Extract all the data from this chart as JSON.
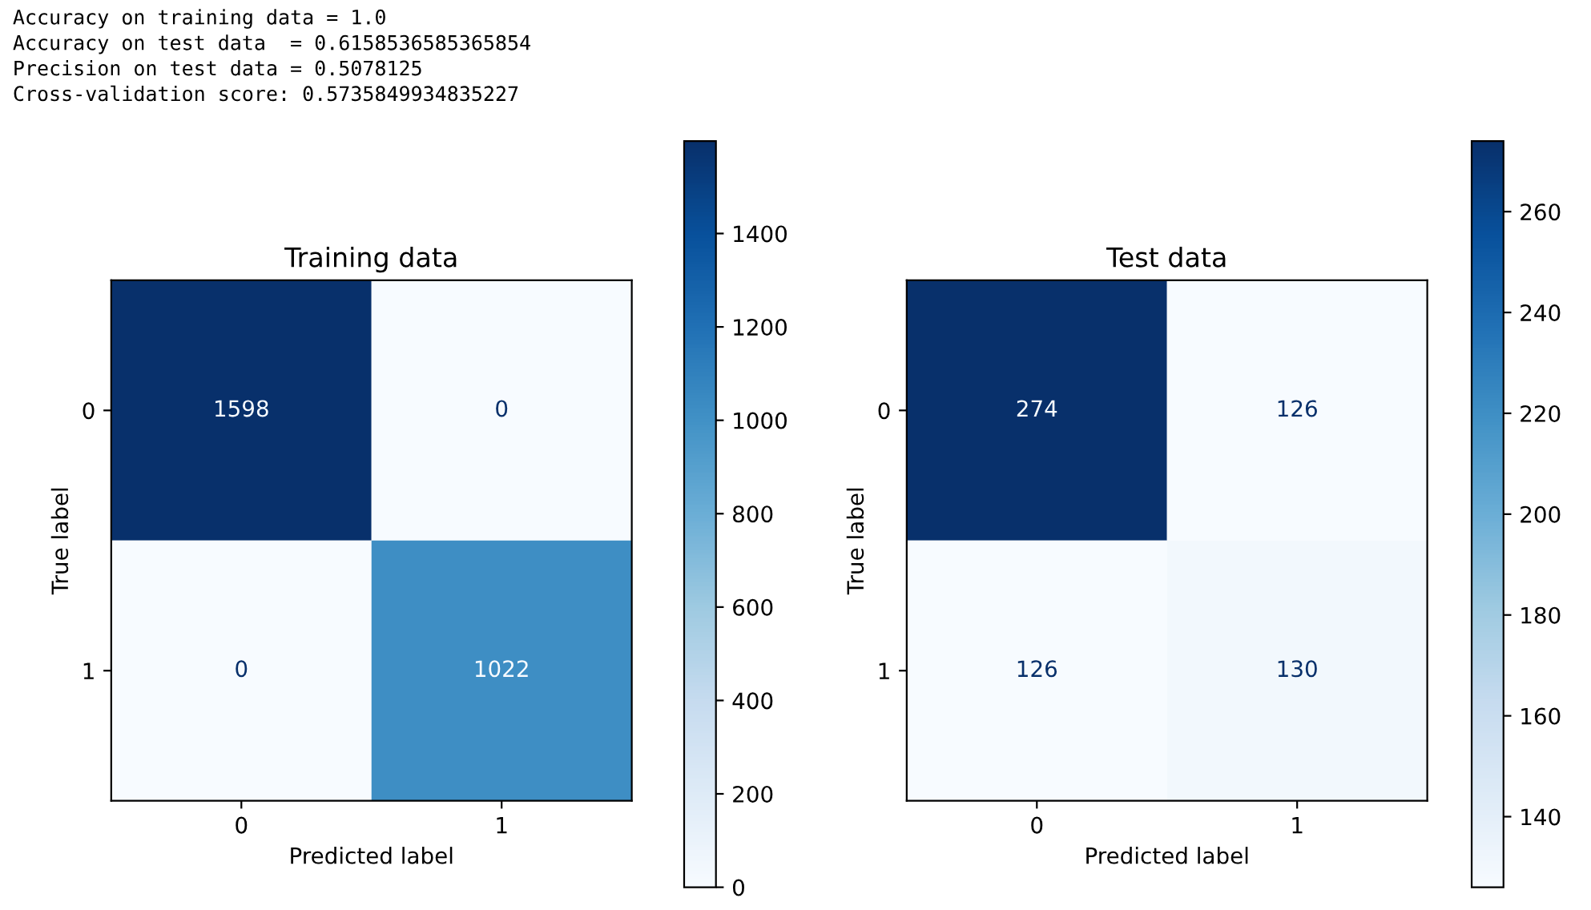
{
  "chart_data": [
    {
      "type": "heatmap",
      "title": "Training data",
      "xlabel": "Predicted label",
      "ylabel": "True label",
      "annotations": [
        "Accuracy on training data = 1.0",
        "Accuracy on test data  = 0.6158536585365854",
        "Precision on test data = 0.5078125",
        "Cross-validation score: 0.5735849934835227"
      ],
      "categories": [
        "0",
        "1"
      ],
      "y_categories": [
        "0",
        "1"
      ],
      "cells": [
        [
          1598,
          0
        ],
        [
          0,
          1022
        ]
      ],
      "data_labels": true,
      "clim": [
        0,
        1598
      ],
      "cticks": [
        0,
        200,
        400,
        600,
        800,
        1000,
        1200,
        1400
      ]
    },
    {
      "type": "heatmap",
      "title": "Test data",
      "xlabel": "Predicted label",
      "ylabel": "True label",
      "categories": [
        "0",
        "1"
      ],
      "y_categories": [
        "0",
        "1"
      ],
      "cells": [
        [
          274,
          126
        ],
        [
          126,
          130
        ]
      ],
      "data_labels": true,
      "clim": [
        126,
        274
      ],
      "cticks": [
        140,
        160,
        180,
        200,
        220,
        240,
        260
      ]
    }
  ]
}
